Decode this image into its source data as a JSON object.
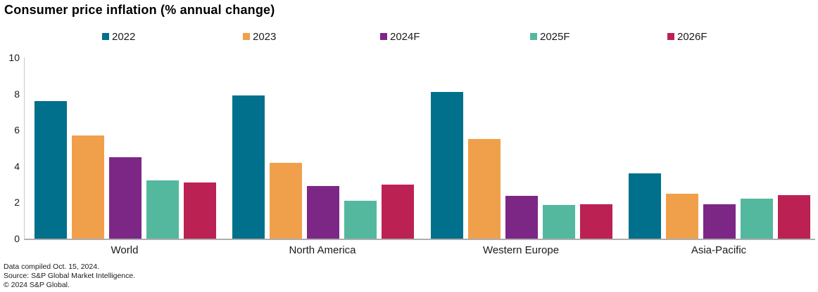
{
  "title": "Consumer price inflation (% annual change)",
  "footer": {
    "line1": "Data compiled Oct. 15, 2024.",
    "line2": "Source: S&P Global Market Intelligence.",
    "line3": "© 2024 S&P Global."
  },
  "chart_data": {
    "type": "bar",
    "title": "Consumer price inflation (% annual change)",
    "categories": [
      "World",
      "North America",
      "Western Europe",
      "Asia-Pacific"
    ],
    "series": [
      {
        "name": "2022",
        "color": "#00708C",
        "values": [
          7.6,
          7.9,
          8.1,
          3.6
        ]
      },
      {
        "name": "2023",
        "color": "#F0A04B",
        "values": [
          5.7,
          4.2,
          5.5,
          2.5
        ]
      },
      {
        "name": "2024F",
        "color": "#7C2786",
        "values": [
          4.5,
          2.9,
          2.35,
          1.9
        ]
      },
      {
        "name": "2025F",
        "color": "#54B89E",
        "values": [
          3.2,
          2.1,
          1.85,
          2.2
        ]
      },
      {
        "name": "2026F",
        "color": "#BC2154",
        "values": [
          3.1,
          3.0,
          1.9,
          2.4
        ]
      }
    ],
    "xlabel": "",
    "ylabel": "",
    "ylim": [
      0,
      10
    ],
    "yticks": [
      0,
      2,
      4,
      6,
      8,
      10
    ],
    "grid": false,
    "legend_position": "top"
  }
}
